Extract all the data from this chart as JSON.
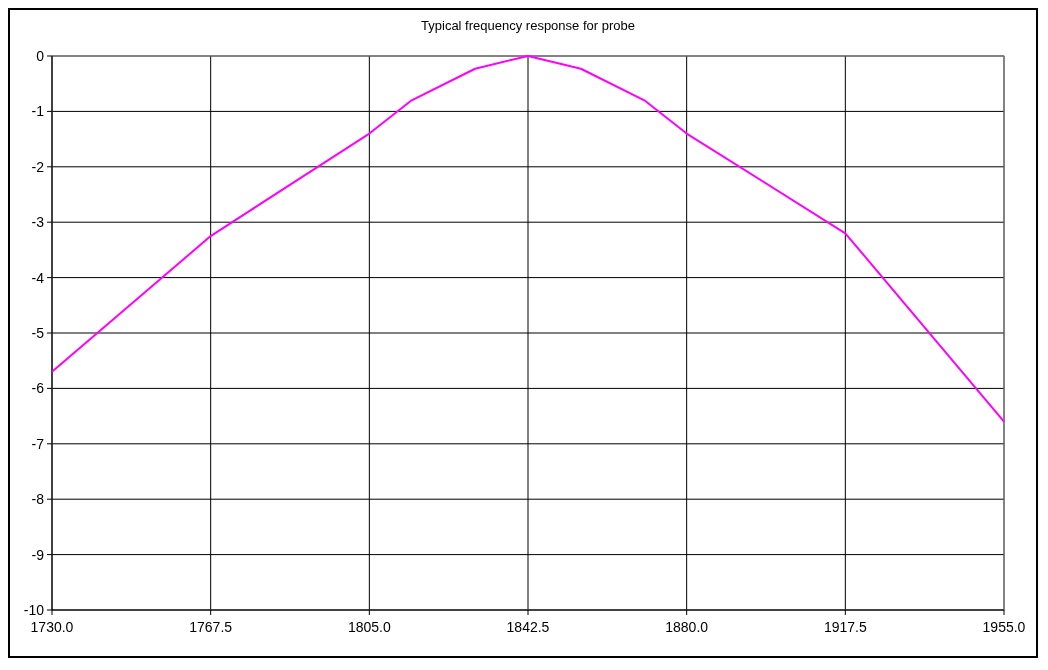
{
  "chart_data": {
    "type": "line",
    "title": "Typical frequency response for probe",
    "x": [
      1730,
      1767.5,
      1805,
      1815,
      1830,
      1842.5,
      1855,
      1870,
      1880,
      1917.5,
      1955
    ],
    "series": [
      {
        "color": "#ff00ff",
        "values": [
          -5.7,
          -3.25,
          -1.4,
          -0.8,
          -0.23,
          0,
          -0.23,
          -0.8,
          -1.4,
          -3.2,
          -6.6
        ]
      }
    ],
    "xlim": [
      1730,
      1955
    ],
    "xticks": [
      {
        "value": 1730,
        "label": "1730.0"
      },
      {
        "value": 1767.5,
        "label": "1767.5"
      },
      {
        "value": 1805,
        "label": "1805.0"
      },
      {
        "value": 1842.5,
        "label": "1842.5"
      },
      {
        "value": 1880,
        "label": "1880.0"
      },
      {
        "value": 1917.5,
        "label": "1917.5"
      },
      {
        "value": 1955,
        "label": "1955.0"
      }
    ],
    "ylim": [
      -10,
      0
    ],
    "yticks": [
      -10,
      -9,
      -8,
      -7,
      -6,
      -5,
      -4,
      -3,
      -2,
      -1,
      0
    ],
    "grid": true,
    "marker": "none",
    "line_style": "solid"
  }
}
